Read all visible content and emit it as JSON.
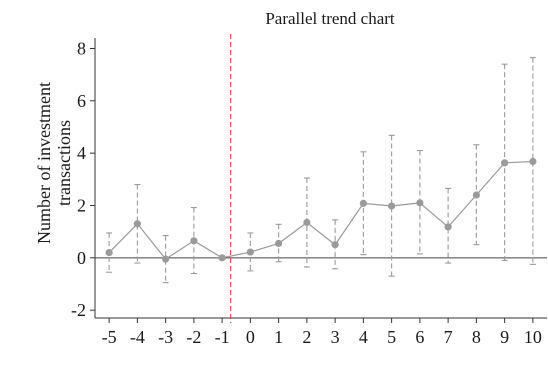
{
  "chart_data": {
    "type": "line",
    "title": "Parallel trend chart",
    "ylabel_lines": [
      "Number of investment",
      "transactions"
    ],
    "xlabel": "",
    "x": [
      -5,
      -4,
      -3,
      -2,
      -1,
      0,
      1,
      2,
      3,
      4,
      5,
      6,
      7,
      8,
      9,
      10
    ],
    "x_tick_labels": [
      "-5",
      "-4",
      "-3",
      "-2",
      "-1",
      "0",
      "1",
      "2",
      "3",
      "4",
      "5",
      "6",
      "7",
      "8",
      "9",
      "10"
    ],
    "y_ticks": [
      -2,
      0,
      2,
      4,
      6,
      8
    ],
    "y_tick_labels": [
      "-2",
      "0",
      "2",
      "4",
      "6",
      "8"
    ],
    "ylim": [
      -2.3,
      8.4
    ],
    "xlim": [
      -5.5,
      10.5
    ],
    "series": [
      {
        "estimate": [
          0.2,
          1.3,
          -0.05,
          0.65,
          0.0,
          0.22,
          0.55,
          1.35,
          0.5,
          2.08,
          1.98,
          2.1,
          1.18,
          2.4,
          3.63,
          3.68
        ],
        "ci_lower": [
          -0.55,
          -0.2,
          -0.95,
          -0.6,
          0.0,
          -0.5,
          -0.15,
          -0.35,
          -0.42,
          0.12,
          -0.7,
          0.15,
          -0.2,
          0.5,
          -0.1,
          -0.25
        ],
        "ci_upper": [
          0.95,
          2.8,
          0.85,
          1.92,
          0.0,
          0.95,
          1.28,
          3.05,
          1.45,
          4.05,
          4.68,
          4.1,
          2.65,
          4.32,
          7.4,
          7.65
        ],
        "color": "#9a9a9a"
      }
    ],
    "reference_line_y": 0,
    "reference_line_x": -0.7,
    "reference_line_x_color": "#d9534f",
    "grid": false
  }
}
